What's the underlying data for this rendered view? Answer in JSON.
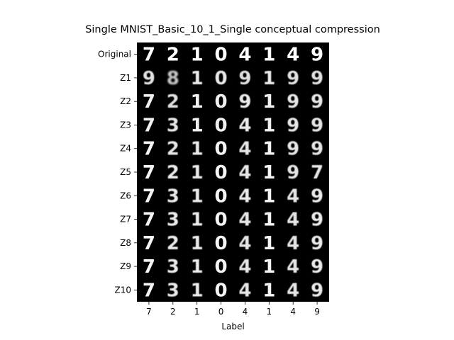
{
  "chart_data": {
    "type": "heatmap",
    "title": "Single MNIST_Basic_10_1_Single conceptual compression",
    "xlabel": "Label",
    "ylabel": "",
    "row_labels": [
      "Original",
      "Z1",
      "Z2",
      "Z3",
      "Z4",
      "Z5",
      "Z6",
      "Z7",
      "Z8",
      "Z9",
      "Z10"
    ],
    "column_labels": [
      "7",
      "2",
      "1",
      "0",
      "4",
      "1",
      "4",
      "9"
    ],
    "cell_glyphs": [
      [
        "7",
        "2",
        "1",
        "0",
        "4",
        "1",
        "4",
        "9"
      ],
      [
        "9",
        "8",
        "1",
        "0",
        "9",
        "1",
        "9",
        "9"
      ],
      [
        "7",
        "2",
        "1",
        "0",
        "9",
        "1",
        "9",
        "9"
      ],
      [
        "7",
        "3",
        "1",
        "0",
        "4",
        "1",
        "9",
        "9"
      ],
      [
        "7",
        "2",
        "1",
        "0",
        "4",
        "1",
        "9",
        "9"
      ],
      [
        "7",
        "2",
        "1",
        "0",
        "4",
        "1",
        "9",
        "7"
      ],
      [
        "7",
        "3",
        "1",
        "0",
        "4",
        "1",
        "4",
        "9"
      ],
      [
        "7",
        "3",
        "1",
        "0",
        "4",
        "1",
        "4",
        "9"
      ],
      [
        "7",
        "2",
        "1",
        "0",
        "4",
        "1",
        "4",
        "9"
      ],
      [
        "7",
        "3",
        "1",
        "0",
        "4",
        "1",
        "4",
        "9"
      ],
      [
        "7",
        "3",
        "1",
        "0",
        "4",
        "1",
        "4",
        "9"
      ]
    ],
    "cell_blur": [
      [
        0,
        0,
        0,
        0,
        0,
        0,
        0,
        0
      ],
      [
        0.6,
        1.0,
        0.4,
        0.4,
        0.6,
        0.4,
        0.6,
        0.6
      ],
      [
        0.3,
        0.6,
        0.3,
        0.3,
        0.4,
        0.3,
        0.5,
        0.5
      ],
      [
        0.3,
        0.5,
        0.3,
        0.3,
        0.4,
        0.3,
        0.5,
        0.5
      ],
      [
        0.2,
        0.5,
        0.4,
        0.2,
        0.5,
        0.2,
        0.5,
        0.5
      ],
      [
        0.2,
        0.4,
        0.4,
        0.2,
        0.5,
        0.2,
        0.5,
        0.5
      ],
      [
        0.2,
        0.4,
        0.4,
        0.2,
        0.4,
        0.2,
        0.5,
        0.4
      ],
      [
        0.2,
        0.4,
        0.4,
        0.2,
        0.5,
        0.2,
        0.5,
        0.4
      ],
      [
        0.2,
        0.4,
        0.4,
        0.2,
        0.5,
        0.2,
        0.5,
        0.4
      ],
      [
        0.2,
        0.4,
        0.4,
        0.2,
        0.5,
        0.2,
        0.5,
        0.4
      ],
      [
        0.2,
        0.4,
        0.4,
        0.2,
        0.5,
        0.2,
        0.5,
        0.4
      ]
    ],
    "colors": {
      "background": "#000000",
      "glyph": "#ffffff",
      "axis": "#000000"
    },
    "grid": false,
    "legend": "none"
  }
}
